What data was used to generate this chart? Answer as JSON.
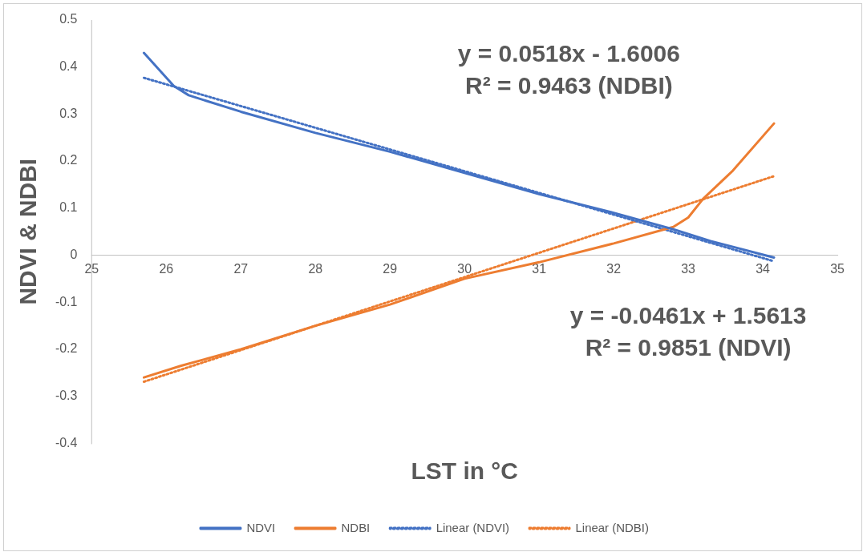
{
  "chart_data": {
    "type": "line",
    "xlabel": "LST in °C",
    "ylabel": "NDVI & NDBI",
    "xlim": [
      25,
      35
    ],
    "xticks": [
      25,
      26,
      27,
      28,
      29,
      30,
      31,
      32,
      33,
      34,
      35
    ],
    "ylim": [
      -0.4,
      0.5
    ],
    "yticks": [
      -0.4,
      -0.3,
      -0.2,
      -0.1,
      0,
      0.1,
      0.2,
      0.3,
      0.4,
      0.5
    ],
    "grid": false,
    "legend": "bottom",
    "marker": "none",
    "series": [
      {
        "name": "NDVI",
        "color": "#4472c4",
        "line_style": "solid",
        "x": [
          25.7,
          26.1,
          26.3,
          27,
          28,
          29,
          30,
          31,
          32,
          32.8,
          33.3,
          34.15
        ],
        "values": [
          0.43,
          0.36,
          0.34,
          0.305,
          0.26,
          0.22,
          0.175,
          0.13,
          0.09,
          0.055,
          0.03,
          -0.005
        ]
      },
      {
        "name": "NDBI",
        "color": "#ed7d31",
        "line_style": "solid",
        "x": [
          25.7,
          26.2,
          27,
          28,
          29,
          30,
          31,
          32,
          32.8,
          33,
          33.2,
          33.6,
          34.15
        ],
        "values": [
          -0.26,
          -0.235,
          -0.2,
          -0.15,
          -0.105,
          -0.05,
          -0.015,
          0.025,
          0.06,
          0.08,
          0.12,
          0.18,
          0.28
        ]
      },
      {
        "name": "Linear (NDVI)",
        "type": "line",
        "color": "#4472c4",
        "line_style": "dotted",
        "x": [
          25.7,
          34.15
        ],
        "values": [
          0.377,
          -0.013
        ]
      },
      {
        "name": "Linear (NDBI)",
        "type": "line",
        "color": "#ed7d31",
        "line_style": "dotted",
        "x": [
          25.7,
          34.15
        ],
        "values": [
          -0.269,
          0.168
        ]
      }
    ],
    "annotations": [
      "y = 0.0518x - 1.6006\nR² = 0.9463 (NDBI)",
      "y = -0.0461x + 1.5613\nR² = 0.9851 (NDVI)"
    ]
  }
}
